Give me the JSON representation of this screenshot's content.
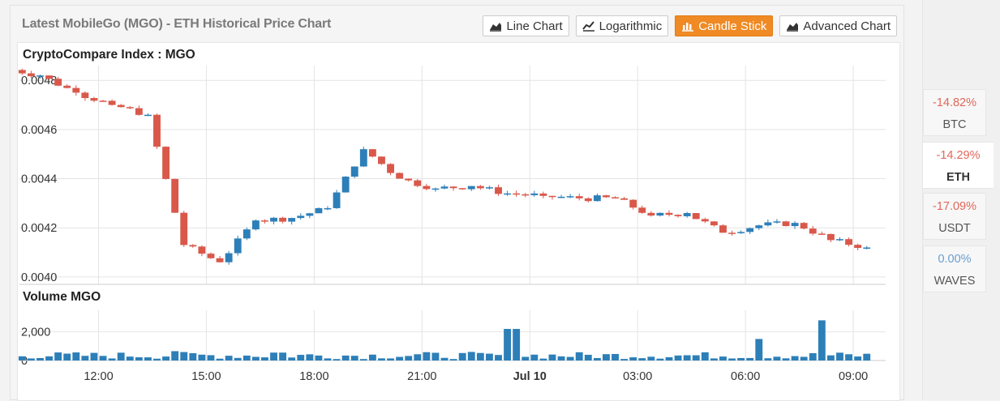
{
  "title": "Latest MobileGo (MGO) - ETH Historical Price Chart",
  "buttons": [
    {
      "label": "Line Chart",
      "icon": "area-chart-icon",
      "active": false
    },
    {
      "label": "Logarithmic",
      "icon": "line-chart-icon",
      "active": false
    },
    {
      "label": "Candle Stick",
      "icon": "bar-chart-icon",
      "active": true
    },
    {
      "label": "Advanced Chart",
      "icon": "area-chart-icon",
      "active": false
    }
  ],
  "pairs": [
    {
      "change": "-14.82%",
      "symbol": "BTC",
      "selected": false,
      "color": "#e0675a"
    },
    {
      "change": "-14.29%",
      "symbol": "ETH",
      "selected": true,
      "color": "#e0675a"
    },
    {
      "change": "-17.09%",
      "symbol": "USDT",
      "selected": false,
      "color": "#e0675a"
    },
    {
      "change": "0.00%",
      "symbol": "WAVES",
      "selected": false,
      "color": "#6a9ecf"
    }
  ],
  "chart_data": {
    "type": "candlestick",
    "title": "CryptoCompare Index : MGO",
    "volume_title": "Volume MGO",
    "price_ticks": [
      "0.0040",
      "0.0042",
      "0.0044",
      "0.0046",
      "0.0048"
    ],
    "price_tick_values": [
      0.004,
      0.0042,
      0.0044,
      0.0046,
      0.0048
    ],
    "price_ylim": [
      0.00397,
      0.00486
    ],
    "volume_ticks": [
      "0",
      "2,000"
    ],
    "volume_tick_values": [
      0,
      2000
    ],
    "volume_ylim": [
      0,
      3500
    ],
    "x_tick_labels": [
      "12:00",
      "15:00",
      "18:00",
      "21:00",
      "Jul 10",
      "03:00",
      "06:00",
      "09:00"
    ],
    "x_tick_hours": [
      12,
      15,
      18,
      21,
      24,
      27,
      30,
      33
    ],
    "x_range_hours": [
      9.8,
      33.9
    ],
    "colors": {
      "up": "#2d7fb8",
      "down": "#d9584a",
      "grid": "#e4e4e4",
      "axis_text": "#333"
    },
    "candles_hourly": [
      {
        "t": 10,
        "o": 0.00485,
        "c": 0.00482
      },
      {
        "t": 11,
        "o": 0.00482,
        "c": 0.00475
      },
      {
        "t": 12,
        "o": 0.00475,
        "c": 0.0047
      },
      {
        "t": 13,
        "o": 0.0047,
        "c": 0.00466
      },
      {
        "t": 14,
        "o": 0.00466,
        "c": 0.00413
      },
      {
        "t": 15,
        "o": 0.00413,
        "c": 0.00406
      },
      {
        "t": 16,
        "o": 0.00406,
        "c": 0.00423
      },
      {
        "t": 17,
        "o": 0.00423,
        "c": 0.00424
      },
      {
        "t": 18,
        "o": 0.00424,
        "c": 0.00428
      },
      {
        "t": 19,
        "o": 0.00428,
        "c": 0.00452
      },
      {
        "t": 20,
        "o": 0.00452,
        "c": 0.0044
      },
      {
        "t": 21,
        "o": 0.0044,
        "c": 0.00436
      },
      {
        "t": 22,
        "o": 0.00436,
        "c": 0.00437
      },
      {
        "t": 23,
        "o": 0.00437,
        "c": 0.00434
      },
      {
        "t": 24,
        "o": 0.00434,
        "c": 0.00433
      },
      {
        "t": 25,
        "o": 0.00433,
        "c": 0.00432
      },
      {
        "t": 26,
        "o": 0.00432,
        "c": 0.00432
      },
      {
        "t": 27,
        "o": 0.00432,
        "c": 0.00425
      },
      {
        "t": 28,
        "o": 0.00425,
        "c": 0.00426
      },
      {
        "t": 29,
        "o": 0.00426,
        "c": 0.00418
      },
      {
        "t": 30,
        "o": 0.00418,
        "c": 0.00421
      },
      {
        "t": 31,
        "o": 0.00421,
        "c": 0.00422
      },
      {
        "t": 32,
        "o": 0.00422,
        "c": 0.00415
      },
      {
        "t": 33,
        "o": 0.00415,
        "c": 0.00412
      }
    ],
    "volume_spikes": [
      {
        "t": 14.2,
        "v": 650
      },
      {
        "t": 17.0,
        "v": 550
      },
      {
        "t": 23.5,
        "v": 2200
      },
      {
        "t": 30.3,
        "v": 1500
      },
      {
        "t": 32.2,
        "v": 2800
      }
    ]
  }
}
